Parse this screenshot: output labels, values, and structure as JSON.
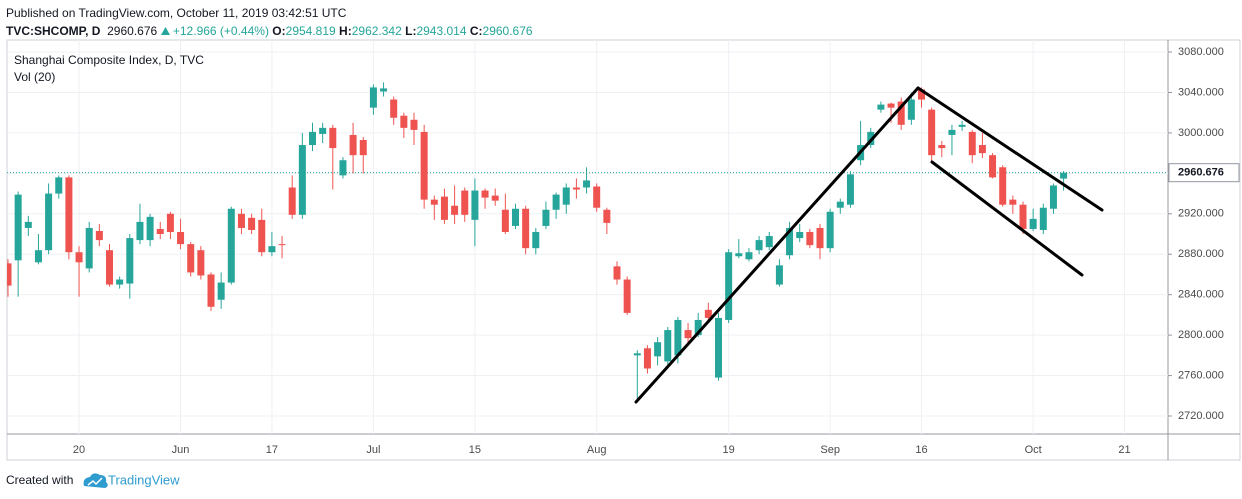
{
  "header": {
    "published": "Published on TradingView.com, October 11, 2019 03:42:51 UTC",
    "symbol": "TVC:SHCOMP, D",
    "change": "+12.966 (+0.44%)",
    "ohlc_labels": [
      "O:",
      "H:",
      "L:",
      "C:"
    ]
  },
  "footer": {
    "created_with": "Created with",
    "brand": "TradingView"
  },
  "chart_data": {
    "type": "candlestick",
    "title": "Shanghai Composite Index, D, TVC",
    "subtitle": "Vol (20)",
    "up_color": "#26a69a",
    "down_color": "#ef5350",
    "grid": true,
    "ylim": [
      2702.2,
      3091.9
    ],
    "yticks": [
      {
        "value": 2720,
        "label": "2720.000"
      },
      {
        "value": 2760,
        "label": "2760.000"
      },
      {
        "value": 2800,
        "label": "2800.000"
      },
      {
        "value": 2840,
        "label": "2840.000"
      },
      {
        "value": 2880,
        "label": "2880.000"
      },
      {
        "value": 2920,
        "label": "2920.000"
      },
      {
        "value": 2960,
        "label": "2960.000"
      },
      {
        "value": 3000,
        "label": "3000.000"
      },
      {
        "value": 3040,
        "label": "3040.000"
      },
      {
        "value": 3080,
        "label": "3080.000"
      }
    ],
    "categories": [
      null,
      null,
      null,
      null,
      null,
      null,
      null,
      "20",
      null,
      null,
      null,
      null,
      null,
      null,
      null,
      null,
      null,
      "Jun",
      null,
      null,
      null,
      null,
      null,
      null,
      null,
      null,
      "17",
      null,
      null,
      null,
      null,
      null,
      null,
      null,
      null,
      null,
      "Jul",
      null,
      null,
      null,
      null,
      null,
      null,
      null,
      null,
      null,
      "15",
      null,
      null,
      null,
      null,
      null,
      null,
      null,
      null,
      null,
      null,
      null,
      "Aug",
      null,
      null,
      null,
      null,
      null,
      null,
      null,
      null,
      null,
      null,
      null,
      null,
      "19",
      null,
      null,
      null,
      null,
      null,
      null,
      null,
      null,
      null,
      "Sep",
      null,
      null,
      null,
      null,
      null,
      null,
      null,
      null,
      "16",
      null,
      null,
      null,
      null,
      null,
      null,
      null,
      null,
      null,
      null,
      "Oct",
      null,
      null,
      null,
      null,
      null,
      null,
      null,
      null,
      "21"
    ],
    "open": [
      2871,
      2874,
      2906,
      2872,
      2884,
      2940,
      2956,
      2882,
      2866,
      2903,
      2884,
      2850,
      2851,
      2894,
      2894,
      2905,
      2920,
      2902,
      2890,
      2884,
      2860,
      2835,
      2852,
      2920,
      2916,
      2914,
      2882,
      2890,
      2946,
      2919,
      2988,
      2999,
      3005,
      2958,
      2998,
      2993,
      3025,
      3041,
      3033,
      3017,
      3013,
      3001,
      2934,
      2937,
      2928,
      2943,
      2914,
      2943,
      2938,
      2924,
      2908,
      2925,
      2886,
      2908,
      2924,
      2929,
      2946,
      2946,
      2947,
      2924,
      2868,
      2855,
      2780,
      2787,
      2779,
      2774,
      2780,
      2805,
      2800,
      2825,
      2758,
      2815,
      2878,
      2875,
      2884,
      2887,
      2850,
      2879,
      2896,
      2902,
      2906,
      2886,
      2926,
      2929,
      2973,
      2988,
      3023,
      3029,
      3031,
      3013,
      3043,
      3023,
      2988,
      2998,
      3006,
      3001,
      2988,
      2978,
      2966,
      2934,
      2929,
      2905,
      2904,
      2925,
      2954.819,
      null,
      null,
      null,
      null,
      null,
      null
    ],
    "high": [
      2875,
      2942,
      2918,
      2900,
      2950,
      2958,
      2958,
      2888,
      2912,
      2910,
      2890,
      2858,
      2900,
      2930,
      2920,
      2912,
      2922,
      2915,
      2892,
      2888,
      2862,
      2862,
      2927,
      2925,
      2920,
      2925,
      2902,
      2898,
      2958,
      3000,
      3010,
      3010,
      3008,
      2976,
      3010,
      2996,
      3048,
      3050,
      3036,
      3020,
      3020,
      3008,
      2938,
      2945,
      2948,
      2946,
      2955,
      2945,
      2945,
      2940,
      2930,
      2928,
      2906,
      2932,
      2941,
      2950,
      2955,
      2966,
      2950,
      2926,
      2873,
      2858,
      2785,
      2790,
      2798,
      2808,
      2818,
      2812,
      2822,
      2832,
      2822,
      2885,
      2895,
      2886,
      2898,
      2902,
      2875,
      2912,
      2910,
      2905,
      2910,
      2925,
      2935,
      2962,
      3012,
      3005,
      3031,
      3030,
      3035,
      3040,
      3045,
      3025,
      2992,
      3008,
      3012,
      3003,
      3000,
      2980,
      2968,
      2938,
      2932,
      2925,
      2930,
      2950,
      2962.342,
      null,
      null,
      null,
      null,
      null,
      null
    ],
    "low": [
      2838,
      2838,
      2898,
      2870,
      2880,
      2935,
      2875,
      2838,
      2862,
      2888,
      2848,
      2846,
      2836,
      2890,
      2888,
      2895,
      2895,
      2885,
      2858,
      2855,
      2824,
      2826,
      2850,
      2900,
      2900,
      2878,
      2878,
      2876,
      2915,
      2915,
      2982,
      2990,
      2944,
      2955,
      2960,
      2960,
      3018,
      3036,
      3008,
      2995,
      2988,
      2925,
      2914,
      2910,
      2910,
      2912,
      2888,
      2925,
      2928,
      2900,
      2905,
      2880,
      2880,
      2905,
      2915,
      2920,
      2935,
      2940,
      2922,
      2900,
      2850,
      2820,
      2735,
      2762,
      2770,
      2770,
      2772,
      2790,
      2798,
      2812,
      2755,
      2812,
      2876,
      2873,
      2880,
      2884,
      2848,
      2875,
      2892,
      2886,
      2875,
      2882,
      2920,
      2926,
      2968,
      2985,
      3020,
      3010,
      3003,
      3008,
      3025,
      2970,
      2976,
      2978,
      3002,
      2970,
      2975,
      2955,
      2927,
      2920,
      2900,
      2903,
      2900,
      2920,
      2943.014,
      null,
      null,
      null,
      null,
      null,
      null
    ],
    "close": [
      2849,
      2939,
      2912,
      2884,
      2940,
      2956,
      2882,
      2872,
      2906,
      2894,
      2850,
      2855,
      2896,
      2912,
      2917,
      2900,
      2902,
      2890,
      2862,
      2859,
      2828,
      2852,
      2925,
      2906,
      2904,
      2882,
      2888,
      2889,
      2919,
      2988,
      3001,
      3005,
      2985,
      2973,
      2978,
      2978,
      3045,
      3044,
      3015,
      3005,
      3003,
      2934,
      2929,
      2914,
      2919,
      2919,
      2943,
      2936,
      2933,
      2902,
      2925,
      2886,
      2902,
      2924,
      2939,
      2946,
      2944,
      2953,
      2926,
      2911,
      2855,
      2822,
      2782,
      2767,
      2793,
      2805,
      2815,
      2797,
      2815,
      2817,
      2817,
      2882,
      2881,
      2882,
      2894,
      2898,
      2869,
      2906,
      2902,
      2889,
      2886,
      2922,
      2932,
      2959,
      2988,
      3001,
      3028,
      3025,
      3008,
      3033,
      3033,
      2978,
      2985,
      3003,
      3008,
      2978,
      2980,
      2956,
      2929,
      2929,
      2905,
      2915,
      2926,
      2948,
      2960.676,
      null,
      null,
      null,
      null,
      null,
      null
    ]
  }
}
